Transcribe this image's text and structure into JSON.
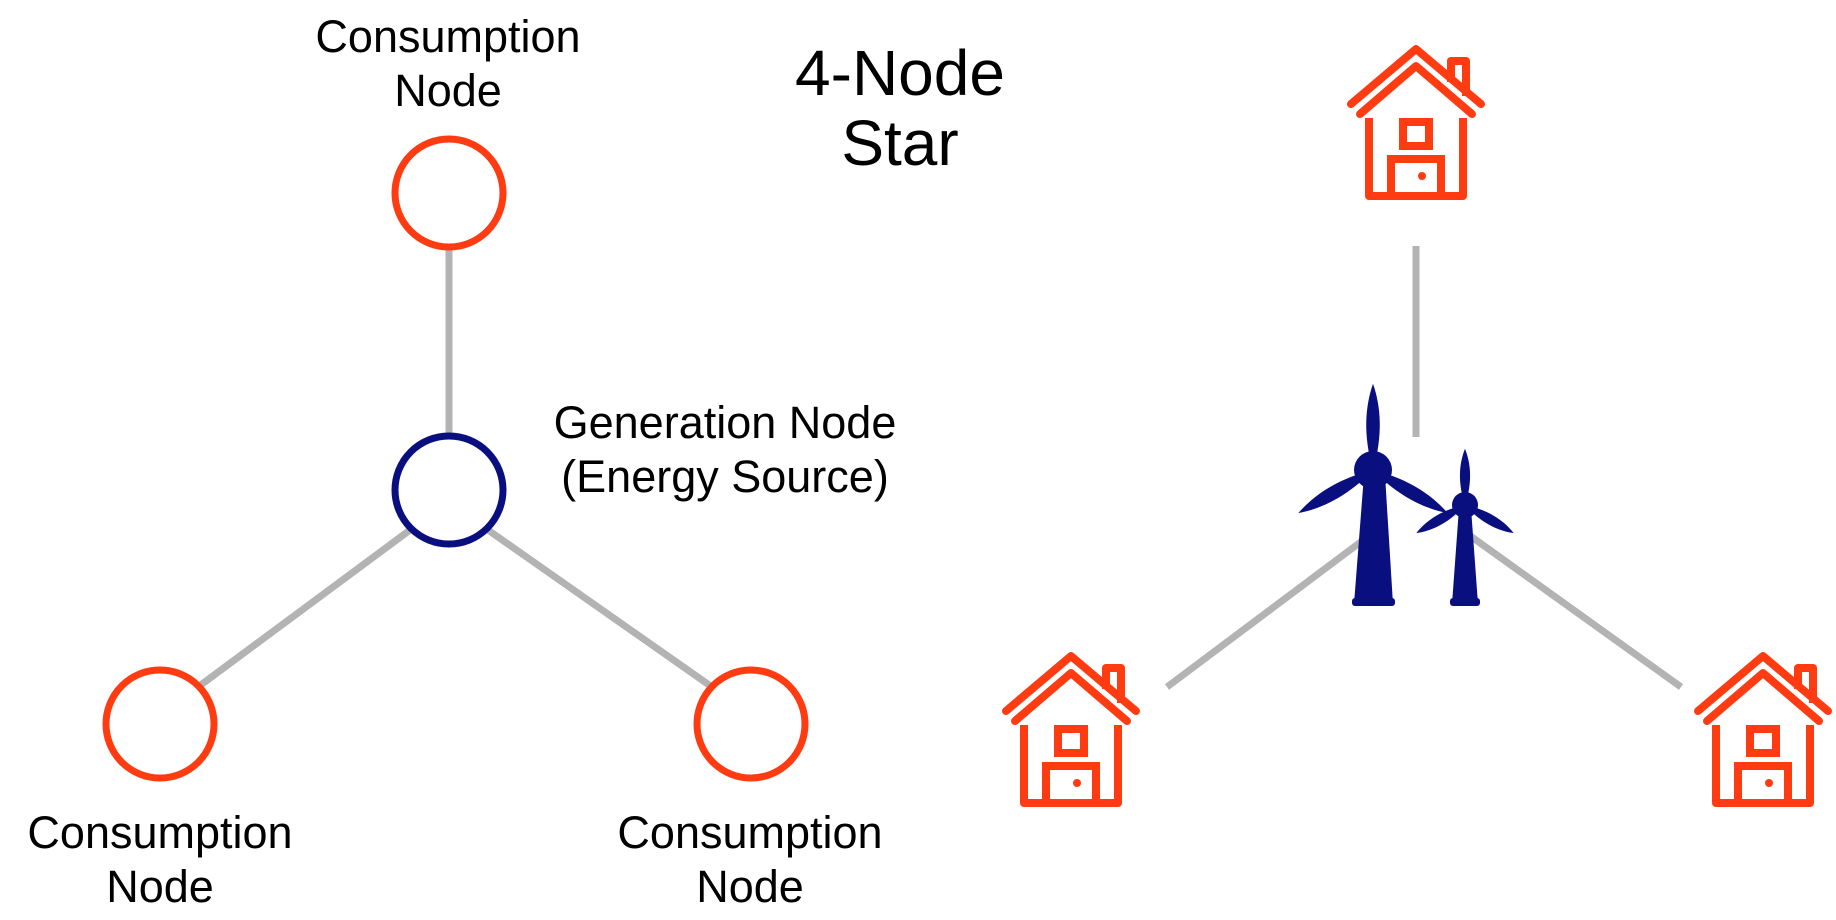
{
  "title": {
    "line1": "4-Node",
    "line2": "Star"
  },
  "abstract_diagram": {
    "top_node": {
      "line1": "Consumption",
      "line2": "Node"
    },
    "center_node": {
      "line1": "Generation Node",
      "line2": "(Energy Source)"
    },
    "bottom_left_node": {
      "line1": "Consumption",
      "line2": "Node"
    },
    "bottom_right_node": {
      "line1": "Consumption",
      "line2": "Node"
    }
  },
  "pictorial_diagram": {
    "center_icon": "wind-turbines-icon",
    "leaf_icon": "house-icon"
  },
  "colors": {
    "consumption": "#ff3b12",
    "generation": "#0a0f80",
    "edge": "#b3b3b3",
    "text": "#000000"
  }
}
